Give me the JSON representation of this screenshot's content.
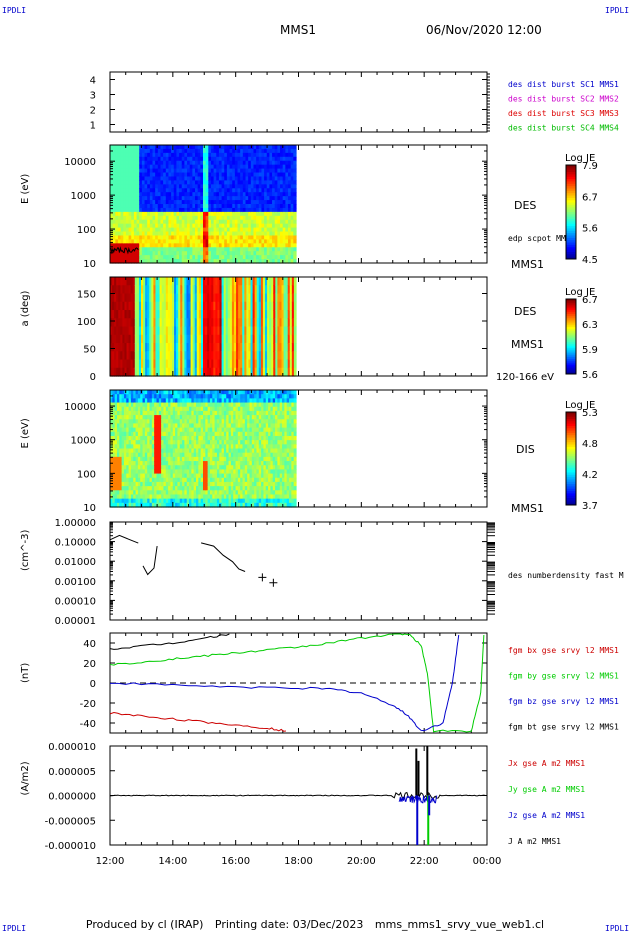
{
  "header": {
    "corner_label": "IPDLI",
    "spacecraft": "MMS1",
    "datetime": "06/Nov/2020 12:00"
  },
  "footer": {
    "produced_by": "Produced by cl (IRAP)",
    "printing_date": "Printing date: 03/Dec/2023",
    "filename": "mms_mms1_srvy_vue_web1.cl"
  },
  "colors": {
    "mms1": "#0000cc",
    "mms2": "#cc00cc",
    "mms3": "#dd0000",
    "mms4": "#00bb00",
    "bx": "#cc0000",
    "by": "#00cc00",
    "bz": "#0000cc",
    "bt": "#000000"
  },
  "chart_data": [
    {
      "type": "line",
      "panel": "availability",
      "xlim": [
        "12:00",
        "00:00"
      ],
      "yticks": [
        "1",
        "2",
        "3",
        "4"
      ],
      "ylim": [
        0.5,
        4.5
      ],
      "legend": [
        {
          "name": "des dist burst SC1 MMS1",
          "color": "#0000cc"
        },
        {
          "name": "des dist burst SC2 MMS2",
          "color": "#cc00cc"
        },
        {
          "name": "des dist burst SC3 MMS3",
          "color": "#dd0000"
        },
        {
          "name": "des dist burst SC4 MMS4",
          "color": "#00bb00"
        }
      ]
    },
    {
      "type": "heatmap",
      "panel": "des_energy",
      "ylabel": "E (eV)",
      "yscale": "log",
      "ylim": [
        10,
        30000
      ],
      "yticks": [
        "10",
        "100",
        "1000",
        "10000"
      ],
      "data_xrange": [
        "12:00",
        "17:55"
      ],
      "colorbar": {
        "title": "Log JE",
        "ticks": [
          "7.9",
          "6.7",
          "5.6",
          "4.5"
        ],
        "range": [
          4.5,
          7.9
        ]
      },
      "label": "DES",
      "spacecraft": "MMS1",
      "overlay": "edp scpot MMS1"
    },
    {
      "type": "heatmap",
      "panel": "des_pitch",
      "ylabel": "a (deg)",
      "ylim": [
        0,
        180
      ],
      "yticks": [
        "0",
        "50",
        "100",
        "150"
      ],
      "data_xrange": [
        "12:00",
        "17:55"
      ],
      "colorbar": {
        "title": "Log JE",
        "ticks": [
          "6.7",
          "6.3",
          "5.9",
          "5.6"
        ],
        "range": [
          5.6,
          6.7
        ]
      },
      "label": "DES",
      "spacecraft": "MMS1",
      "energy_range": "120-166 eV"
    },
    {
      "type": "heatmap",
      "panel": "dis_energy",
      "ylabel": "E (eV)",
      "yscale": "log",
      "ylim": [
        10,
        30000
      ],
      "yticks": [
        "10",
        "100",
        "1000",
        "10000"
      ],
      "data_xrange": [
        "12:00",
        "17:55"
      ],
      "colorbar": {
        "title": "Log JE",
        "ticks": [
          "5.3",
          "4.8",
          "4.2",
          "3.7"
        ],
        "range": [
          3.7,
          5.3
        ]
      },
      "label": "DIS",
      "spacecraft": "MMS1"
    },
    {
      "type": "line",
      "panel": "density",
      "ylabel": "(cm^-3)",
      "yscale": "log",
      "ylim": [
        0.0001,
        1.0
      ],
      "yticks": [
        "0.00001",
        "0.00010",
        "0.00100",
        "0.01000",
        "0.10000",
        "1.00000"
      ],
      "series": [
        {
          "name": "des numberdensity fast M",
          "color": "#000000",
          "x": [
            12.0,
            12.3,
            12.6,
            12.9,
            13.05,
            13.2,
            13.4,
            13.5,
            14.9,
            15.3,
            15.6,
            15.9,
            16.1,
            16.3
          ],
          "y": [
            0.15,
            0.22,
            0.12,
            0.08,
            0.005,
            0.002,
            0.004,
            0.06,
            0.08,
            0.05,
            0.02,
            0.01,
            0.004,
            0.003
          ]
        }
      ],
      "markers": [
        {
          "x": 16.85,
          "y": 0.0015
        },
        {
          "x": 17.2,
          "y": 0.0008
        }
      ]
    },
    {
      "type": "line",
      "panel": "magnetic_field",
      "ylabel": "(nT)",
      "ylim": [
        -50,
        50
      ],
      "yticks": [
        "-40",
        "-20",
        "0",
        "20",
        "40"
      ],
      "series": [
        {
          "name": "fgm bx gse srvy l2 MMS1",
          "color": "#cc0000",
          "x": [
            12.0,
            13.0,
            14.0,
            15.0,
            16.0,
            17.0,
            17.6
          ],
          "y": [
            -30,
            -33,
            -36,
            -39,
            -42,
            -45,
            -48
          ]
        },
        {
          "name": "fgm by gse srvy l2 MMS1",
          "color": "#00cc00",
          "x": [
            12.0,
            13.0,
            14.0,
            15.0,
            16.0,
            17.0,
            18.0,
            19.0,
            20.0,
            21.0,
            21.5,
            21.9,
            22.1,
            22.3,
            23.5,
            23.8,
            23.9
          ],
          "y": [
            18,
            21,
            24,
            27,
            30,
            33,
            36,
            40,
            45,
            49,
            49,
            38,
            10,
            -48,
            -48,
            -10,
            48
          ]
        },
        {
          "name": "fgm bz gse srvy l2 MMS1",
          "color": "#0000cc",
          "x": [
            12.0,
            14.0,
            16.0,
            18.0,
            19.0,
            20.0,
            21.0,
            21.5,
            21.9,
            22.6,
            22.9,
            23.1
          ],
          "y": [
            0,
            -2,
            -4,
            -5,
            -6,
            -10,
            -22,
            -33,
            -48,
            -40,
            0,
            48
          ]
        },
        {
          "name": "fgm bt gse srvy l2 MMS1",
          "color": "#000000",
          "x": [
            12.0,
            13.0,
            14.0,
            15.0,
            15.8
          ],
          "y": [
            34,
            37,
            40,
            45,
            49
          ]
        }
      ]
    },
    {
      "type": "line",
      "panel": "current_density",
      "ylabel": "(A/m2)",
      "ylim": [
        -1e-05,
        1e-05
      ],
      "yticks": [
        "-0.000010",
        "-0.000005",
        "0.000000",
        "0.000005",
        "0.000010"
      ],
      "series": [
        {
          "name": "Jx gse A m2 MMS1",
          "color": "#cc0000"
        },
        {
          "name": "Jy gse A m2 MMS1",
          "color": "#00cc00"
        },
        {
          "name": "Jz gse A m2 MMS1",
          "color": "#0000cc"
        },
        {
          "name": "J A m2 MMS1",
          "color": "#000000"
        }
      ],
      "xticks": [
        "12:00",
        "14:00",
        "16:00",
        "18:00",
        "20:00",
        "22:00",
        "00:00"
      ]
    }
  ]
}
